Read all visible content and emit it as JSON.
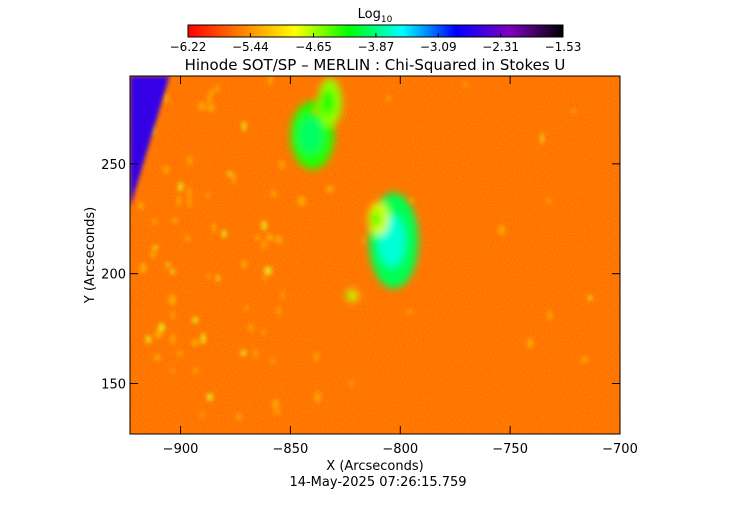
{
  "chart_data": {
    "type": "heatmap",
    "title": "Hinode SOT/SP – MERLIN : Chi-Squared in Stokes U",
    "xlabel": "X (Arcseconds)",
    "ylabel": "Y (Arcseconds)",
    "timestamp": "14-May-2025 07:26:15.759",
    "xlim": [
      -923,
      -700
    ],
    "ylim": [
      127,
      290
    ],
    "x_ticks": [
      -900,
      -850,
      -800,
      -750,
      -700
    ],
    "y_ticks": [
      150,
      200,
      250
    ],
    "x_tick_labels": [
      "−900",
      "−850",
      "−800",
      "−750",
      "−700"
    ],
    "y_tick_labels": [
      "150",
      "200",
      "250"
    ],
    "colorbar": {
      "title": "Log",
      "title_subscript": "10",
      "range": [
        -6.22,
        -1.53
      ],
      "ticks": [
        -6.22,
        -5.44,
        -4.65,
        -3.87,
        -3.09,
        -2.31,
        -1.53
      ],
      "tick_labels": [
        "−6.22",
        "−5.44",
        "−4.65",
        "−3.87",
        "−3.09",
        "−2.31",
        "−1.53"
      ],
      "colors": [
        "#ff0000",
        "#ff8000",
        "#ffff00",
        "#00ff00",
        "#00ffff",
        "#0000ff",
        "#8000c0",
        "#000000"
      ]
    },
    "background_value": -5.7,
    "features": [
      {
        "x": -803,
        "y": 215,
        "value": -4.0
      },
      {
        "x": -840,
        "y": 263,
        "value": -4.3
      },
      {
        "x": -832,
        "y": 278,
        "value": -4.6
      },
      {
        "x": -810,
        "y": 225,
        "value": -4.8
      },
      {
        "x": -822,
        "y": 190,
        "value": -4.8
      }
    ],
    "limb_region": {
      "x_range": [
        -923,
        -905
      ],
      "y_range": [
        230,
        290
      ],
      "value": -2.6
    },
    "grid": false,
    "legend": "none"
  }
}
